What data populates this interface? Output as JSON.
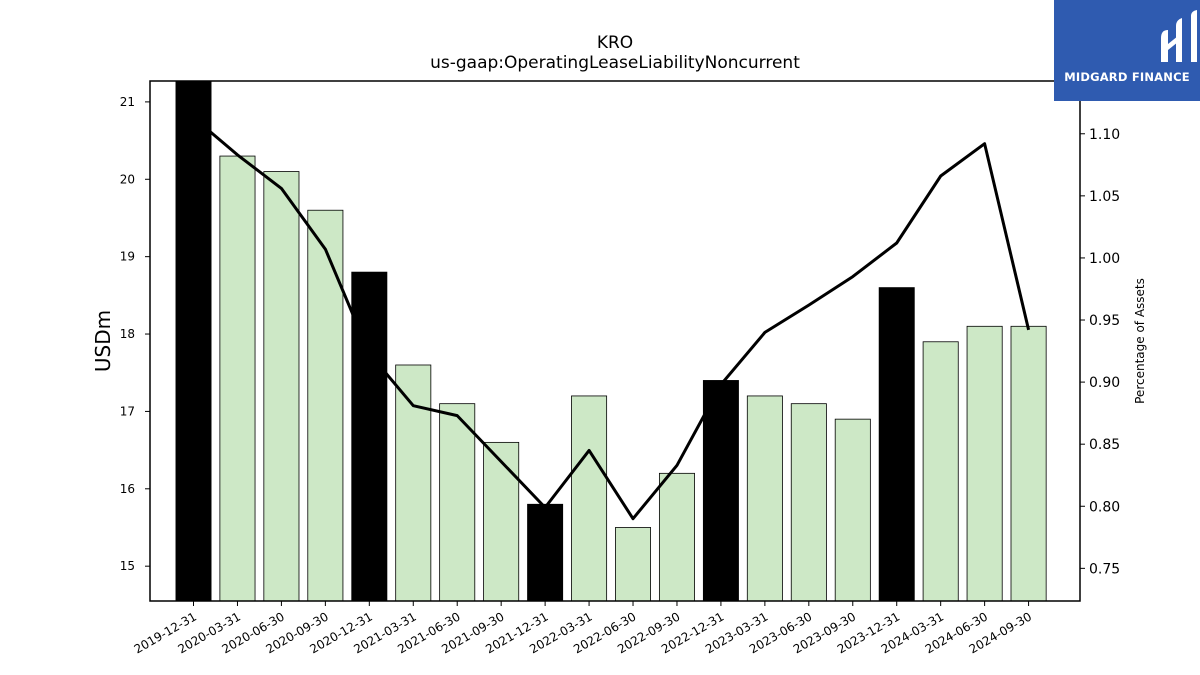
{
  "chart_data": {
    "type": "bar",
    "title": "KRO",
    "subtitle": "us-gaap:OperatingLeaseLiabilityNoncurrent",
    "ylabel": "USDm",
    "y2label": "Percentage of Assets",
    "ylim": [
      14.55,
      21.27
    ],
    "y2lim": [
      0.7237,
      1.1425
    ],
    "yticks": [
      "15",
      "16",
      "17",
      "18",
      "19",
      "20",
      "21"
    ],
    "y2ticks": [
      "0.75",
      "0.80",
      "0.85",
      "0.90",
      "0.95",
      "1.00",
      "1.05",
      "1.10"
    ],
    "categories": [
      "2019-12-31",
      "2020-03-31",
      "2020-06-30",
      "2020-09-30",
      "2020-12-31",
      "2021-03-31",
      "2021-06-30",
      "2021-09-30",
      "2021-12-31",
      "2022-03-31",
      "2022-06-30",
      "2022-09-30",
      "2022-12-31",
      "2023-03-31",
      "2023-06-30",
      "2023-09-30",
      "2023-12-31",
      "2024-03-31",
      "2024-06-30",
      "2024-09-30"
    ],
    "series": [
      {
        "kind": "bar",
        "values": [
          21.3,
          20.3,
          20.1,
          19.6,
          18.8,
          17.6,
          17.1,
          16.6,
          15.8,
          17.2,
          15.5,
          16.2,
          17.4,
          17.2,
          17.1,
          16.9,
          18.6,
          17.9,
          18.1,
          18.1
        ],
        "colors": [
          "#000000",
          "#cde8c6",
          "#cde8c6",
          "#cde8c6",
          "#000000",
          "#cde8c6",
          "#cde8c6",
          "#cde8c6",
          "#000000",
          "#cde8c6",
          "#cde8c6",
          "#cde8c6",
          "#000000",
          "#cde8c6",
          "#cde8c6",
          "#cde8c6",
          "#000000",
          "#cde8c6",
          "#cde8c6",
          "#cde8c6"
        ]
      },
      {
        "kind": "line",
        "axis": "right",
        "color": "#000000",
        "values": [
          1.113,
          1.083,
          1.056,
          1.007,
          0.923,
          0.881,
          0.873,
          0.836,
          0.799,
          0.845,
          0.79,
          0.833,
          0.898,
          0.94,
          0.962,
          0.985,
          1.012,
          1.066,
          1.092,
          0.942
        ]
      }
    ],
    "bar_edge_color": "#000000",
    "grid": false
  },
  "logo": {
    "text": "MIDGARD FINANCE",
    "color": "#2f5bb0"
  }
}
